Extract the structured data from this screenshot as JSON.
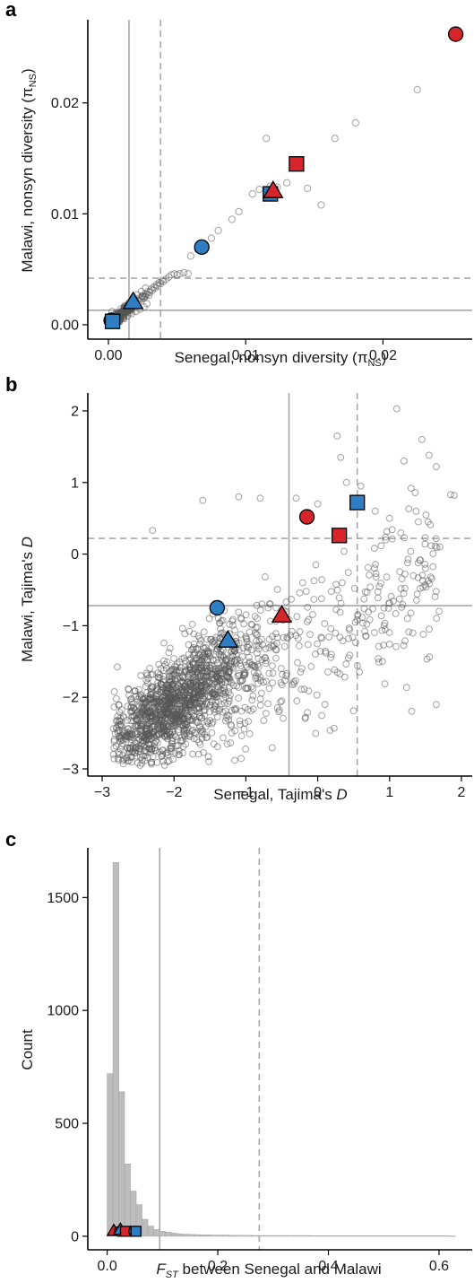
{
  "chart_data": [
    {
      "panel": "a",
      "type": "scatter",
      "xlabel": "Senegal, nonsyn diversity (π",
      "xlabel_sub": "NS",
      "xlabel_end": ")",
      "ylabel": "Malawi, nonsyn diversity (π",
      "ylabel_sub": "NS",
      "ylabel_end": ")",
      "xlim": [
        -0.0015,
        0.0265
      ],
      "ylim": [
        -0.0013,
        0.0275
      ],
      "xticks": [
        0.0,
        0.01,
        0.02
      ],
      "yticks": [
        0.0,
        0.01,
        0.02
      ],
      "xtick_labels": [
        "0.00",
        "0.01",
        "0.02"
      ],
      "ytick_labels": [
        "0.00",
        "0.01",
        "0.02"
      ],
      "vline_solid": 0.0015,
      "vline_dashed": 0.0038,
      "hline_solid": 0.0013,
      "hline_dashed": 0.0042,
      "background_points": [
        [
          0.0002,
          0.0002
        ],
        [
          0.0003,
          0.0004
        ],
        [
          0.0004,
          0.0003
        ],
        [
          0.0005,
          0.0006
        ],
        [
          0.0006,
          0.0005
        ],
        [
          0.0007,
          0.0008
        ],
        [
          0.0008,
          0.0007
        ],
        [
          0.0009,
          0.001
        ],
        [
          0.001,
          0.0009
        ],
        [
          0.0011,
          0.0012
        ],
        [
          0.0012,
          0.0011
        ],
        [
          0.0013,
          0.0014
        ],
        [
          0.0014,
          0.0013
        ],
        [
          0.0015,
          0.0016
        ],
        [
          0.0016,
          0.0015
        ],
        [
          0.0017,
          0.0018
        ],
        [
          0.0018,
          0.0017
        ],
        [
          0.0019,
          0.002
        ],
        [
          0.002,
          0.0019
        ],
        [
          0.0021,
          0.0022
        ],
        [
          0.0022,
          0.0021
        ],
        [
          0.0023,
          0.0024
        ],
        [
          0.0024,
          0.0023
        ],
        [
          0.0025,
          0.0026
        ],
        [
          0.0026,
          0.0025
        ],
        [
          0.0027,
          0.0028
        ],
        [
          0.0028,
          0.0027
        ],
        [
          0.0029,
          0.003
        ],
        [
          0.003,
          0.0029
        ],
        [
          0.0031,
          0.0032
        ],
        [
          0.0032,
          0.0031
        ],
        [
          0.0033,
          0.0034
        ],
        [
          0.0034,
          0.0033
        ],
        [
          0.0035,
          0.0036
        ],
        [
          0.0036,
          0.0035
        ],
        [
          0.0037,
          0.0038
        ],
        [
          0.0038,
          0.0037
        ],
        [
          0.0039,
          0.004
        ],
        [
          0.004,
          0.0039
        ],
        [
          0.0042,
          0.0041
        ],
        [
          0.0044,
          0.0043
        ],
        [
          0.0046,
          0.0045
        ],
        [
          0.0048,
          0.0046
        ],
        [
          0.005,
          0.0045
        ],
        [
          0.0052,
          0.0046
        ],
        [
          0.0055,
          0.0047
        ],
        [
          0.0058,
          0.0046
        ],
        [
          0.006,
          0.0062
        ],
        [
          0.0065,
          0.0068
        ],
        [
          0.007,
          0.0072
        ],
        [
          0.0075,
          0.0078
        ],
        [
          0.008,
          0.0085
        ],
        [
          0.009,
          0.0095
        ],
        [
          0.0095,
          0.0102
        ],
        [
          0.0105,
          0.0118
        ],
        [
          0.011,
          0.0122
        ],
        [
          0.0115,
          0.0168
        ],
        [
          0.0118,
          0.0125
        ],
        [
          0.0123,
          0.0124
        ],
        [
          0.013,
          0.0128
        ],
        [
          0.0135,
          0.0148
        ],
        [
          0.0145,
          0.0123
        ],
        [
          0.0155,
          0.0108
        ],
        [
          0.0165,
          0.0168
        ],
        [
          0.018,
          0.0182
        ],
        [
          0.0225,
          0.0212
        ],
        [
          0.0005,
          0.0001
        ],
        [
          0.0008,
          0.0003
        ],
        [
          0.0011,
          0.0006
        ],
        [
          0.0014,
          0.0008
        ],
        [
          0.0017,
          0.001
        ],
        [
          0.002,
          0.0012
        ],
        [
          0.0023,
          0.0014
        ],
        [
          0.0026,
          0.0016
        ],
        [
          0.0028,
          0.0019
        ],
        [
          0.0001,
          0.0005
        ],
        [
          0.0003,
          0.0008
        ],
        [
          0.0006,
          0.0011
        ],
        [
          0.0009,
          0.0014
        ],
        [
          0.0012,
          0.0017
        ],
        [
          0.0015,
          0.002
        ],
        [
          0.0018,
          0.0024
        ],
        [
          0.0021,
          0.0027
        ],
        [
          0.0024,
          0.003
        ],
        [
          0.0027,
          0.0033
        ]
      ],
      "highlight_points": [
        {
          "x": 0.0253,
          "y": 0.0262,
          "shape": "circle",
          "color": "#d7262b"
        },
        {
          "x": 0.0137,
          "y": 0.0145,
          "shape": "square",
          "color": "#d7262b"
        },
        {
          "x": 0.0118,
          "y": 0.0118,
          "shape": "square",
          "color": "#2f7ec4"
        },
        {
          "x": 0.012,
          "y": 0.0121,
          "shape": "triangle",
          "color": "#d7262b"
        },
        {
          "x": 0.0068,
          "y": 0.007,
          "shape": "circle",
          "color": "#2f7ec4"
        },
        {
          "x": 0.0018,
          "y": 0.0021,
          "shape": "triangle",
          "color": "#2f7ec4"
        },
        {
          "x": 0.0002,
          "y": 0.0004,
          "shape": "circle",
          "color": "#d7262b"
        },
        {
          "x": 0.0003,
          "y": 0.0003,
          "shape": "square",
          "color": "#2f7ec4"
        }
      ]
    },
    {
      "panel": "b",
      "type": "scatter",
      "xlabel": "Senegal, Tajima's ",
      "xlabel_italic": "D",
      "ylabel": "Malawi, Tajima's ",
      "ylabel_italic": "D",
      "xlim": [
        -3.2,
        2.15
      ],
      "ylim": [
        -3.1,
        2.25
      ],
      "xticks": [
        -3,
        -2,
        -1,
        0,
        1,
        2
      ],
      "yticks": [
        -3,
        -2,
        -1,
        0,
        1,
        2
      ],
      "xtick_labels": [
        "−3",
        "−2",
        "−1",
        "0",
        "1",
        "2"
      ],
      "ytick_labels": [
        "−3",
        "−2",
        "−1",
        "0",
        "1",
        "2"
      ],
      "vline_solid": -0.4,
      "vline_dashed": 0.55,
      "hline_solid": -0.72,
      "hline_dashed": 0.22,
      "cloud_center": [
        -2.0,
        -2.1
      ],
      "extra_points": [
        [
          1.1,
          2.03
        ],
        [
          0.27,
          1.65
        ],
        [
          1.45,
          1.6
        ],
        [
          0.32,
          1.35
        ],
        [
          1.2,
          1.3
        ],
        [
          1.85,
          0.83
        ],
        [
          1.9,
          0.82
        ],
        [
          1.55,
          1.38
        ],
        [
          1.65,
          1.22
        ],
        [
          1.3,
          0.92
        ],
        [
          0.6,
          0.95
        ],
        [
          0.8,
          0.6
        ],
        [
          1.0,
          0.5
        ],
        [
          1.4,
          0.45
        ],
        [
          -0.8,
          0.78
        ],
        [
          -1.6,
          0.75
        ],
        [
          -1.1,
          0.8
        ],
        [
          -2.3,
          0.33
        ],
        [
          -0.3,
          0.78
        ],
        [
          0.0,
          0.7
        ],
        [
          0.4,
          1.0
        ],
        [
          1.65,
          -2.1
        ],
        [
          0.1,
          -2.1
        ],
        [
          -0.5,
          -2.05
        ],
        [
          1.25,
          -0.9
        ],
        [
          0.9,
          -1.5
        ],
        [
          1.5,
          -0.2
        ],
        [
          1.7,
          0.1
        ]
      ],
      "highlight_points": [
        {
          "x": 0.55,
          "y": 0.72,
          "shape": "square",
          "color": "#2f7ec4"
        },
        {
          "x": -0.15,
          "y": 0.52,
          "shape": "circle",
          "color": "#d7262b"
        },
        {
          "x": 0.3,
          "y": 0.26,
          "shape": "square",
          "color": "#d7262b"
        },
        {
          "x": -1.4,
          "y": -0.75,
          "shape": "circle",
          "color": "#2f7ec4"
        },
        {
          "x": -0.5,
          "y": -0.85,
          "shape": "triangle",
          "color": "#d7262b"
        },
        {
          "x": -1.25,
          "y": -1.2,
          "shape": "triangle",
          "color": "#2f7ec4"
        }
      ]
    },
    {
      "panel": "c",
      "type": "bar",
      "subtype": "histogram",
      "xlabel_prefix": "F",
      "xlabel_sub": "ST",
      "xlabel_rest": " between Senegal and Malawi",
      "ylabel": "Count",
      "xlim": [
        -0.035,
        0.66
      ],
      "ylim": [
        -60,
        1720
      ],
      "xticks": [
        0.0,
        0.2,
        0.4,
        0.6
      ],
      "yticks": [
        0,
        500,
        1000,
        1500
      ],
      "xtick_labels": [
        "0.0",
        "0.2",
        "0.4",
        "0.6"
      ],
      "ytick_labels": [
        "0",
        "500",
        "1000",
        "1500"
      ],
      "vline_solid": 0.095,
      "vline_dashed": 0.275,
      "bin_start": 0.0,
      "bin_width": 0.0105,
      "counts": [
        720,
        1655,
        640,
        320,
        200,
        140,
        75,
        45,
        30,
        22,
        18,
        14,
        11,
        9,
        8,
        7,
        6,
        6,
        5,
        5,
        5,
        4,
        4,
        4,
        4,
        3,
        3,
        3,
        3,
        3,
        3,
        3,
        3,
        3,
        3,
        2,
        2,
        2,
        2,
        2,
        2,
        2,
        2,
        2,
        2,
        2,
        2,
        2,
        2,
        2,
        2,
        2,
        2,
        2,
        2,
        2,
        2,
        2,
        2,
        1
      ],
      "highlight_points": [
        {
          "x": 0.012,
          "y": 25,
          "shape": "triangle",
          "color": "#d7262b"
        },
        {
          "x": 0.022,
          "y": 22,
          "shape": "circle",
          "color": "#d7262b"
        },
        {
          "x": 0.024,
          "y": 30,
          "shape": "triangle",
          "color": "#2f7ec4"
        },
        {
          "x": 0.033,
          "y": 22,
          "shape": "square",
          "color": "#d7262b"
        },
        {
          "x": 0.048,
          "y": 22,
          "shape": "circle",
          "color": "#2f7ec4"
        },
        {
          "x": 0.052,
          "y": 22,
          "shape": "square",
          "color": "#2f7ec4"
        }
      ]
    }
  ]
}
